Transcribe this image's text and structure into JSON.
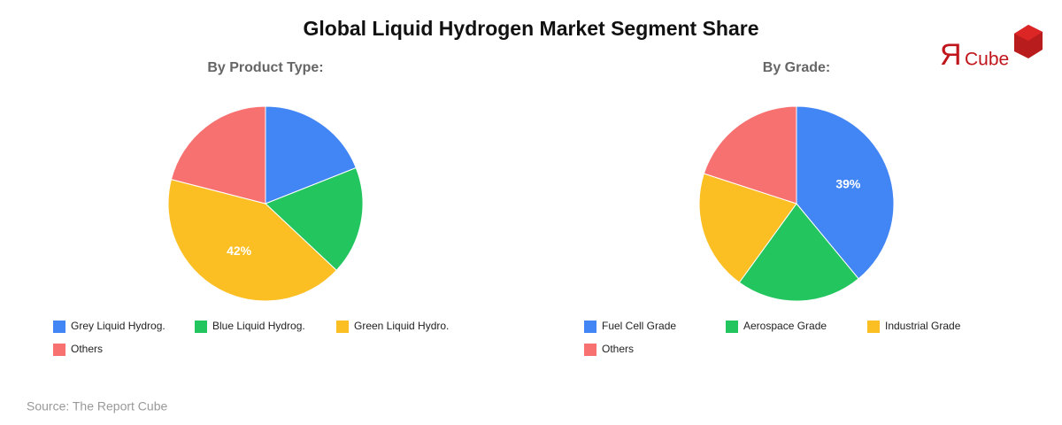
{
  "title": "Global Liquid Hydrogen Market Segment Share",
  "logo": {
    "mark": "Я",
    "text": "Cube"
  },
  "source": "Source: The Report Cube",
  "chart_data": [
    {
      "type": "pie",
      "title": "By Product Type:",
      "categories": [
        "Grey Liquid Hydrog.",
        "Blue Liquid Hydrog.",
        "Green Liquid Hydro.",
        "Others"
      ],
      "values": [
        19,
        18,
        42,
        21
      ],
      "value_labels": [
        null,
        null,
        "42%",
        null
      ],
      "colors": [
        "#4285f4",
        "#22c55e",
        "#fbbf24",
        "#f87171"
      ]
    },
    {
      "type": "pie",
      "title": "By Grade:",
      "categories": [
        "Fuel Cell Grade",
        "Aerospace Grade",
        "Industrial Grade",
        "Others"
      ],
      "values": [
        39,
        21,
        20,
        20
      ],
      "value_labels": [
        "39%",
        null,
        null,
        null
      ],
      "colors": [
        "#4285f4",
        "#22c55e",
        "#fbbf24",
        "#f87171"
      ]
    }
  ]
}
